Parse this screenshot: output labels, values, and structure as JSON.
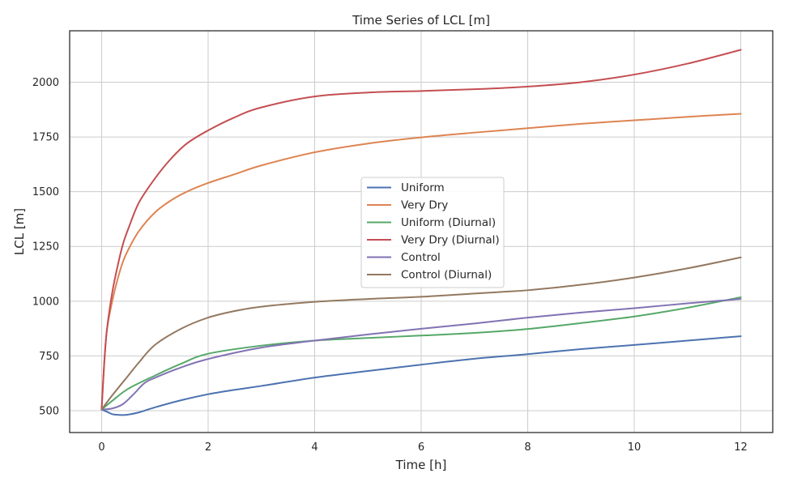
{
  "chart_data": {
    "type": "line",
    "title": "Time Series of LCL [m]",
    "xlabel": "Time [h]",
    "ylabel": "LCL [m]",
    "xlim": [
      -0.6,
      12.6
    ],
    "ylim": [
      400,
      2235
    ],
    "xticks": [
      0,
      2,
      4,
      6,
      8,
      10,
      12
    ],
    "yticks": [
      500,
      750,
      1000,
      1250,
      1500,
      1750,
      2000
    ],
    "grid": true,
    "legend_position": "center",
    "series": [
      {
        "name": "Uniform",
        "color": "#4c72b0",
        "points": [
          [
            0,
            505
          ],
          [
            0.1,
            495
          ],
          [
            0.2,
            484
          ],
          [
            0.3,
            481
          ],
          [
            0.4,
            480
          ],
          [
            0.5,
            482
          ],
          [
            0.7,
            492
          ],
          [
            1.0,
            515
          ],
          [
            1.5,
            548
          ],
          [
            2,
            575
          ],
          [
            2.5,
            595
          ],
          [
            3,
            613
          ],
          [
            4,
            651
          ],
          [
            5,
            681
          ],
          [
            6,
            710
          ],
          [
            7,
            737
          ],
          [
            8,
            758
          ],
          [
            9,
            781
          ],
          [
            10,
            800
          ],
          [
            11,
            820
          ],
          [
            12,
            840
          ]
        ]
      },
      {
        "name": "Very Dry",
        "color": "#dd8452",
        "points": [
          [
            0,
            505
          ],
          [
            0.05,
            720
          ],
          [
            0.1,
            870
          ],
          [
            0.2,
            1000
          ],
          [
            0.3,
            1100
          ],
          [
            0.4,
            1180
          ],
          [
            0.5,
            1235
          ],
          [
            0.7,
            1320
          ],
          [
            1.0,
            1405
          ],
          [
            1.3,
            1460
          ],
          [
            1.6,
            1500
          ],
          [
            2.0,
            1540
          ],
          [
            2.5,
            1580
          ],
          [
            3,
            1620
          ],
          [
            4,
            1680
          ],
          [
            5,
            1720
          ],
          [
            6,
            1748
          ],
          [
            7,
            1770
          ],
          [
            8,
            1790
          ],
          [
            9,
            1810
          ],
          [
            10,
            1826
          ],
          [
            11,
            1842
          ],
          [
            12,
            1856
          ]
        ]
      },
      {
        "name": "Uniform (Diurnal)",
        "color": "#55a868",
        "points": [
          [
            0,
            505
          ],
          [
            0.2,
            545
          ],
          [
            0.5,
            600
          ],
          [
            1.0,
            660
          ],
          [
            1.5,
            715
          ],
          [
            2,
            760
          ],
          [
            3,
            797
          ],
          [
            4,
            820
          ],
          [
            5,
            832
          ],
          [
            6,
            843
          ],
          [
            7,
            855
          ],
          [
            8,
            873
          ],
          [
            9,
            900
          ],
          [
            10,
            930
          ],
          [
            11,
            970
          ],
          [
            12,
            1018
          ]
        ]
      },
      {
        "name": "Very Dry (Diurnal)",
        "color": "#c44e52",
        "points": [
          [
            0,
            505
          ],
          [
            0.05,
            720
          ],
          [
            0.1,
            870
          ],
          [
            0.2,
            1040
          ],
          [
            0.3,
            1160
          ],
          [
            0.4,
            1260
          ],
          [
            0.5,
            1330
          ],
          [
            0.7,
            1450
          ],
          [
            1.0,
            1560
          ],
          [
            1.3,
            1650
          ],
          [
            1.6,
            1720
          ],
          [
            2.0,
            1780
          ],
          [
            2.5,
            1840
          ],
          [
            3,
            1885
          ],
          [
            4,
            1935
          ],
          [
            5,
            1953
          ],
          [
            6,
            1960
          ],
          [
            7,
            1968
          ],
          [
            8,
            1980
          ],
          [
            9,
            2000
          ],
          [
            10,
            2035
          ],
          [
            11,
            2085
          ],
          [
            12,
            2148
          ]
        ]
      },
      {
        "name": "Control",
        "color": "#8172b3",
        "points": [
          [
            0,
            505
          ],
          [
            0.2,
            510
          ],
          [
            0.4,
            530
          ],
          [
            0.6,
            575
          ],
          [
            0.8,
            625
          ],
          [
            1.0,
            650
          ],
          [
            1.5,
            698
          ],
          [
            2,
            736
          ],
          [
            3,
            788
          ],
          [
            4,
            820
          ],
          [
            5,
            848
          ],
          [
            6,
            874
          ],
          [
            7,
            898
          ],
          [
            8,
            925
          ],
          [
            9,
            948
          ],
          [
            10,
            968
          ],
          [
            11,
            990
          ],
          [
            12,
            1010
          ]
        ]
      },
      {
        "name": "Control (Diurnal)",
        "color": "#937860",
        "points": [
          [
            0,
            505
          ],
          [
            0.2,
            570
          ],
          [
            0.5,
            660
          ],
          [
            0.7,
            720
          ],
          [
            1.0,
            800
          ],
          [
            1.5,
            875
          ],
          [
            2,
            925
          ],
          [
            2.5,
            955
          ],
          [
            3,
            975
          ],
          [
            4,
            997
          ],
          [
            5,
            1010
          ],
          [
            6,
            1020
          ],
          [
            7,
            1035
          ],
          [
            8,
            1050
          ],
          [
            9,
            1075
          ],
          [
            10,
            1108
          ],
          [
            11,
            1150
          ],
          [
            12,
            1200
          ]
        ]
      }
    ]
  }
}
